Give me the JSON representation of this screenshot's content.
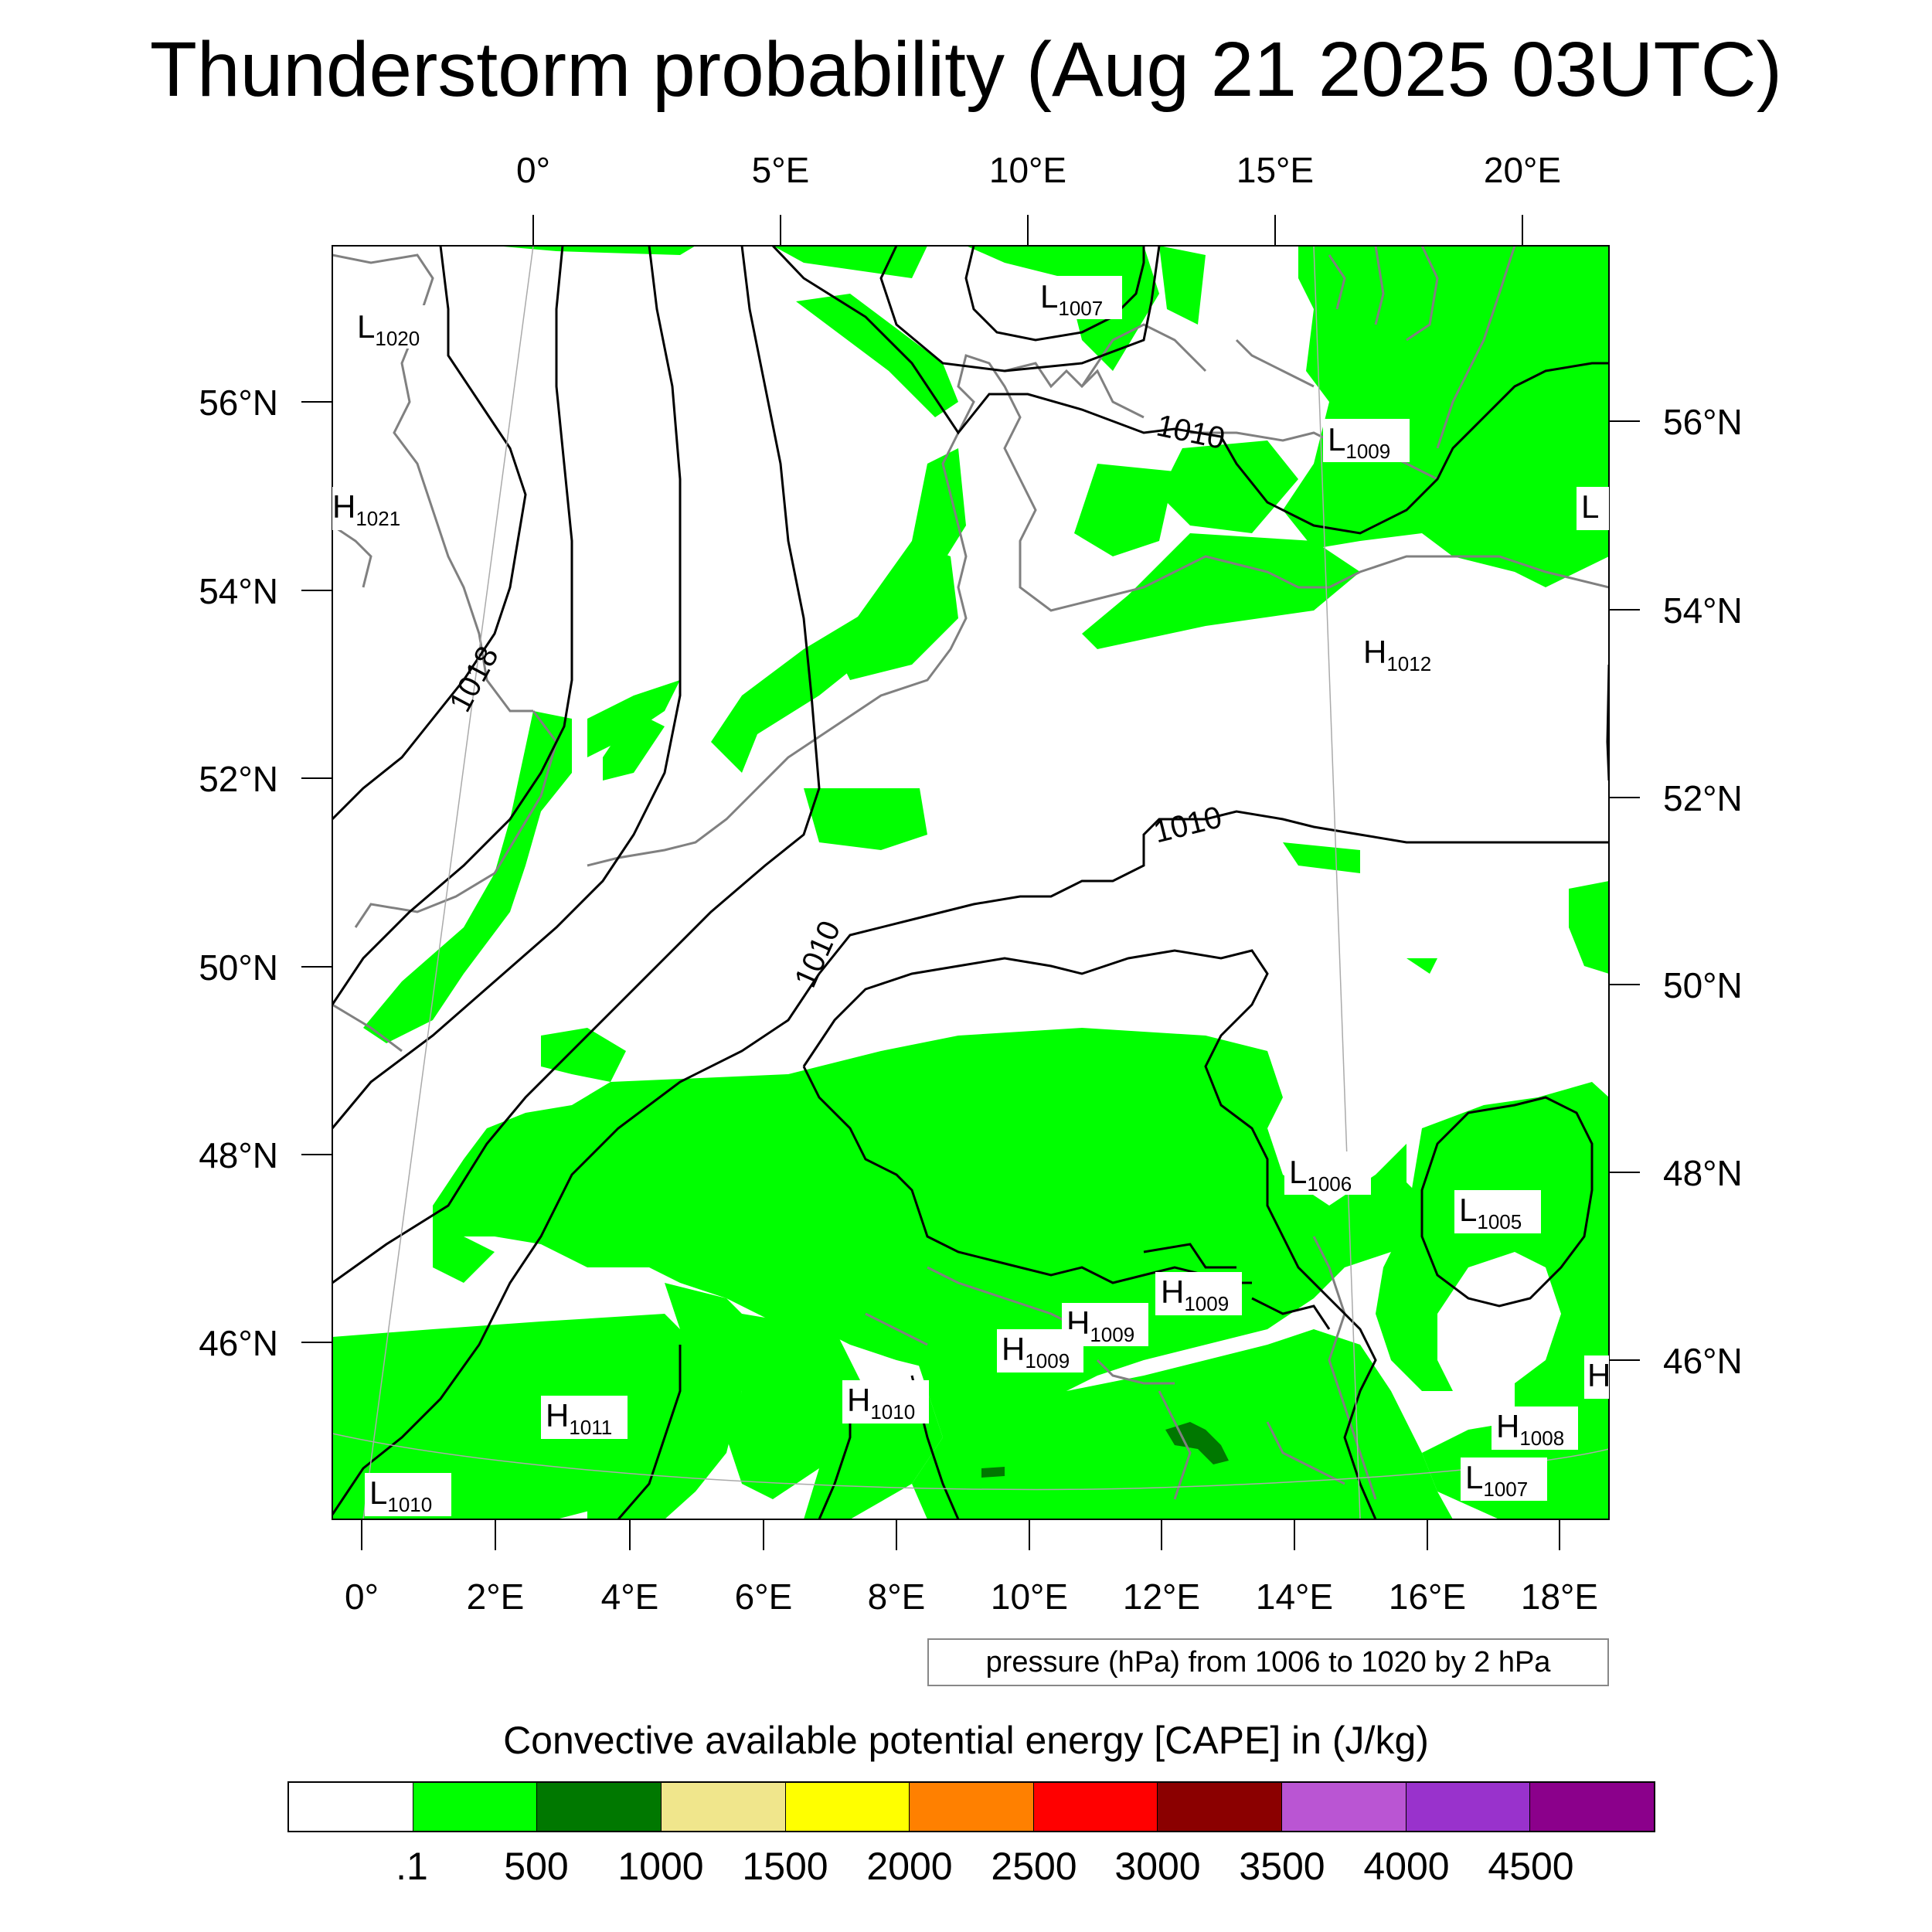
{
  "title": "Thunderstorm probability (Aug 21 2025 03UTC)",
  "top_axis": [
    "0°",
    "5°E",
    "10°E",
    "15°E",
    "20°E"
  ],
  "bottom_axis": [
    "0°",
    "2°E",
    "4°E",
    "6°E",
    "8°E",
    "10°E",
    "12°E",
    "14°E",
    "16°E",
    "18°E"
  ],
  "left_axis": [
    "56°N",
    "54°N",
    "52°N",
    "50°N",
    "48°N",
    "46°N"
  ],
  "right_axis": [
    "56°N",
    "54°N",
    "52°N",
    "50°N",
    "48°N",
    "46°N"
  ],
  "pressure_centers": [
    {
      "letter": "L",
      "value": "1020"
    },
    {
      "letter": "H",
      "value": "1021"
    },
    {
      "letter": "L",
      "value": "1007"
    },
    {
      "letter": "L",
      "value": "1009"
    },
    {
      "letter": "L",
      "value": ""
    },
    {
      "letter": "H",
      "value": "1012"
    },
    {
      "letter": "L",
      "value": "1006"
    },
    {
      "letter": "L",
      "value": "1005"
    },
    {
      "letter": "H",
      "value": "1009"
    },
    {
      "letter": "H",
      "value": "1009"
    },
    {
      "letter": "H",
      "value": "1009"
    },
    {
      "letter": "H",
      "value": "1010"
    },
    {
      "letter": "H",
      "value": "1011"
    },
    {
      "letter": "L",
      "value": "1010"
    },
    {
      "letter": "H",
      "value": ""
    },
    {
      "letter": "H",
      "value": "1008"
    },
    {
      "letter": "L",
      "value": "1007"
    }
  ],
  "contour_labels": [
    "1018",
    "1010",
    "1010",
    "1010"
  ],
  "info_box": "pressure (hPa) from 1006 to 1020 by 2 hPa",
  "colorbar": {
    "title": "Convective available potential energy [CAPE] in (J/kg)",
    "colors": [
      "#ffffff",
      "#00ff00",
      "#007800",
      "#f0e68c",
      "#ffff00",
      "#ff8000",
      "#ff0000",
      "#8b0000",
      "#ba55d3",
      "#9932cc",
      "#8b008b"
    ],
    "labels": [
      ".1",
      "500",
      "1000",
      "1500",
      "2000",
      "2500",
      "3000",
      "3500",
      "4000",
      "4500"
    ]
  },
  "colors": {
    "cape_low": "#00ff00",
    "cape_mid": "#007800",
    "coastline": "#808080",
    "isobar": "#000000"
  }
}
